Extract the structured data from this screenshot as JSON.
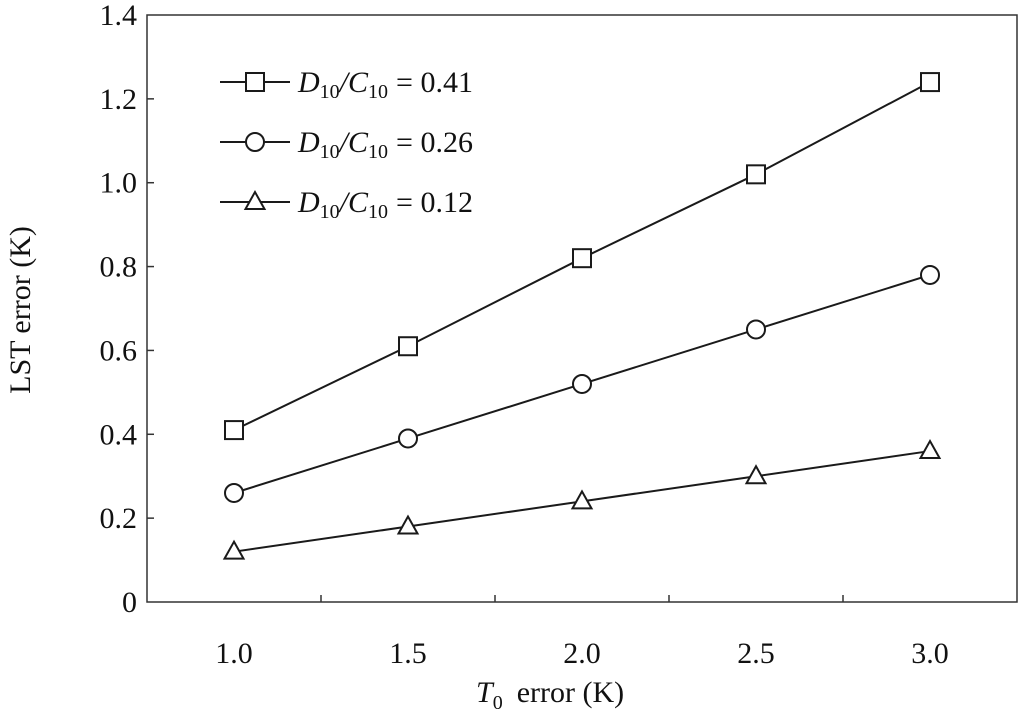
{
  "chart_data": {
    "type": "line",
    "title": "",
    "xlabel": {
      "symbol": "T",
      "subscript": "0",
      "rest": "error (K)"
    },
    "ylabel": "LST error (K)",
    "x": [
      1.0,
      1.5,
      2.0,
      2.5,
      3.0
    ],
    "xlim": [
      0.75,
      3.25
    ],
    "ylim": [
      0,
      1.4
    ],
    "x_ticks": [
      "1.0",
      "1.5",
      "2.0",
      "2.5",
      "3.0"
    ],
    "y_ticks": [
      "0",
      "0.2",
      "0.4",
      "0.6",
      "0.8",
      "1.0",
      "1.2",
      "1.4"
    ],
    "grid": false,
    "legend_position": "top-left",
    "line_color": "#1a1a1a",
    "series": [
      {
        "name": "D10/C10 = 0.41",
        "legend": {
          "a": "D",
          "a_sub": "10",
          "b": "C",
          "b_sub": "10",
          "value": "= 0.41"
        },
        "marker": "square",
        "values": [
          0.41,
          0.61,
          0.82,
          1.02,
          1.24
        ]
      },
      {
        "name": "D10/C10 = 0.26",
        "legend": {
          "a": "D",
          "a_sub": "10",
          "b": "C",
          "b_sub": "10",
          "value": "= 0.26"
        },
        "marker": "circle",
        "values": [
          0.26,
          0.39,
          0.52,
          0.65,
          0.78
        ]
      },
      {
        "name": "D10/C10 = 0.12",
        "legend": {
          "a": "D",
          "a_sub": "10",
          "b": "C",
          "b_sub": "10",
          "value": "= 0.12"
        },
        "marker": "triangle",
        "values": [
          0.12,
          0.18,
          0.24,
          0.3,
          0.36
        ]
      }
    ]
  }
}
